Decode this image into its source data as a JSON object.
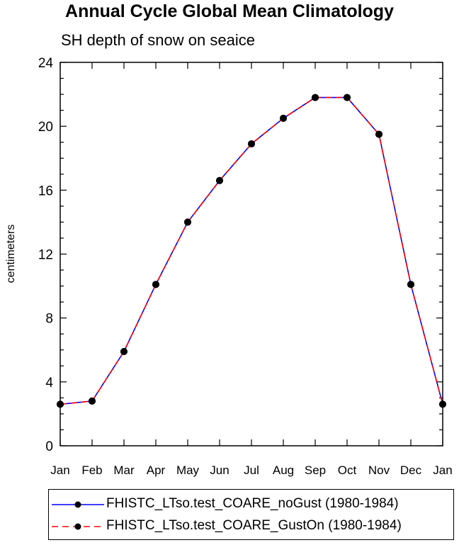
{
  "chart_data": {
    "type": "line",
    "title": "Annual Cycle Global Mean Climatology",
    "subtitle": "SH depth of snow on seaice",
    "xlabel": "",
    "ylabel": "centimeters",
    "categories": [
      "Jan",
      "Feb",
      "Mar",
      "Apr",
      "May",
      "Jun",
      "Jul",
      "Aug",
      "Sep",
      "Oct",
      "Nov",
      "Dec",
      "Jan"
    ],
    "ylim": [
      0,
      24
    ],
    "yticks": [
      "0",
      "4",
      "8",
      "12",
      "16",
      "20",
      "24"
    ],
    "grid": false,
    "legend_position": "bottom",
    "series": [
      {
        "name": "FHISTC_LTso.test_COARE_noGust (1980-1984)",
        "color": "#0000ff",
        "line_style": "solid",
        "marker": "circle",
        "values": [
          2.6,
          2.8,
          5.9,
          10.1,
          14.0,
          16.6,
          18.9,
          20.5,
          21.8,
          21.8,
          19.5,
          10.1,
          2.6
        ]
      },
      {
        "name": "FHISTC_LTso.test_COARE_GustOn (1980-1984)",
        "color": "#ff0000",
        "line_style": "dashed",
        "marker": "circle",
        "values": [
          2.6,
          2.8,
          5.9,
          10.1,
          14.0,
          16.6,
          18.9,
          20.5,
          21.8,
          21.8,
          19.5,
          10.1,
          2.6
        ]
      }
    ]
  }
}
